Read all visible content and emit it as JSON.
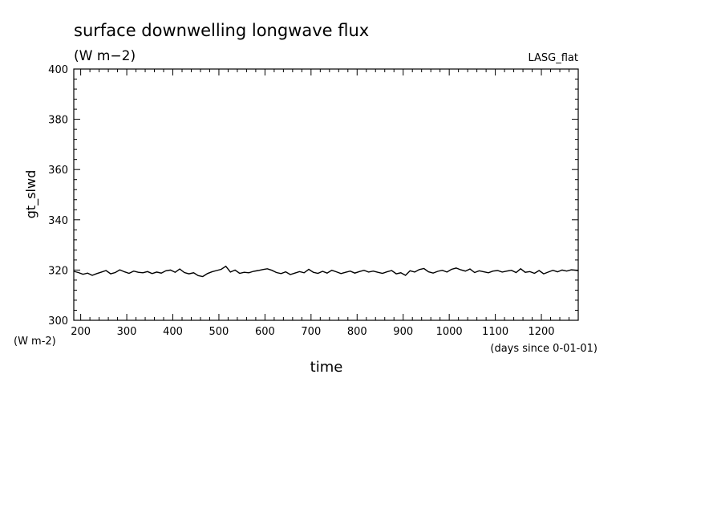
{
  "chart_data": {
    "type": "line",
    "title": "surface downwelling longwave flux",
    "title_units": "(W m−2)",
    "tag": "LASG_flat",
    "ylabel": "gt_slwd",
    "y_units": "(W m-2)",
    "xlabel": "time",
    "x_units": "(days since 0-01-01)",
    "xlim": [
      185,
      1280
    ],
    "ylim": [
      300,
      400
    ],
    "x_ticks": [
      200,
      300,
      400,
      500,
      600,
      700,
      800,
      900,
      1000,
      1100,
      1200
    ],
    "y_ticks": [
      300,
      320,
      340,
      360,
      380,
      400
    ],
    "grid": false,
    "line_color": "#000000",
    "series": [
      {
        "x": [
          185,
          195,
          205,
          215,
          225,
          235,
          245,
          255,
          265,
          275,
          285,
          295,
          305,
          315,
          325,
          335,
          345,
          355,
          365,
          375,
          385,
          395,
          405,
          415,
          425,
          435,
          445,
          455,
          465,
          475,
          485,
          495,
          505,
          515,
          525,
          535,
          545,
          555,
          565,
          575,
          585,
          595,
          605,
          615,
          625,
          635,
          645,
          655,
          665,
          675,
          685,
          695,
          705,
          715,
          725,
          735,
          745,
          755,
          765,
          775,
          785,
          795,
          805,
          815,
          825,
          835,
          845,
          855,
          865,
          875,
          885,
          895,
          905,
          915,
          925,
          935,
          945,
          955,
          965,
          975,
          985,
          995,
          1005,
          1015,
          1025,
          1035,
          1045,
          1055,
          1065,
          1075,
          1085,
          1095,
          1105,
          1115,
          1125,
          1135,
          1145,
          1155,
          1165,
          1175,
          1185,
          1195,
          1205,
          1215,
          1225,
          1235,
          1245,
          1255,
          1265,
          1280
        ],
        "y": [
          319.5,
          319.0,
          318.3,
          318.8,
          317.9,
          318.6,
          319.2,
          319.8,
          318.5,
          319.0,
          320.1,
          319.3,
          318.7,
          319.6,
          319.1,
          318.9,
          319.4,
          318.6,
          319.2,
          318.8,
          319.7,
          320.0,
          319.1,
          320.4,
          319.0,
          318.5,
          318.9,
          317.8,
          317.4,
          318.6,
          319.3,
          319.8,
          320.3,
          321.5,
          319.2,
          320.0,
          318.7,
          319.1,
          318.9,
          319.5,
          319.8,
          320.2,
          320.5,
          319.9,
          319.0,
          318.6,
          319.3,
          318.2,
          318.8,
          319.4,
          318.9,
          320.3,
          319.1,
          318.7,
          319.5,
          318.8,
          319.9,
          319.3,
          318.6,
          319.1,
          319.6,
          318.8,
          319.4,
          319.9,
          319.2,
          319.6,
          319.1,
          318.7,
          319.3,
          319.8,
          318.5,
          318.9,
          317.9,
          319.7,
          319.2,
          320.2,
          320.6,
          319.3,
          318.8,
          319.5,
          319.9,
          319.2,
          320.3,
          320.8,
          320.1,
          319.6,
          320.4,
          319.0,
          319.7,
          319.3,
          318.9,
          319.6,
          319.8,
          319.2,
          319.6,
          319.9,
          319.0,
          320.5,
          319.1,
          319.4,
          318.7,
          319.8,
          318.5,
          319.2,
          319.9,
          319.3,
          320.0,
          319.6,
          320.1,
          319.8
        ]
      }
    ]
  }
}
